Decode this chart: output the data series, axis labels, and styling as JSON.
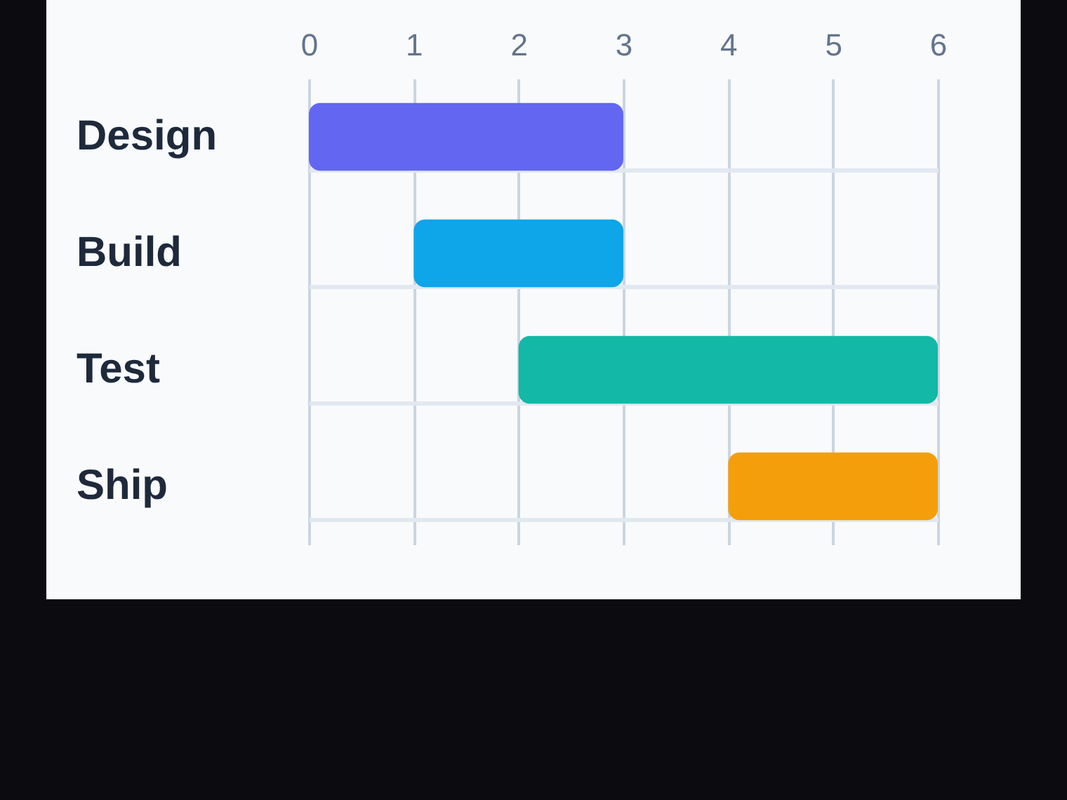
{
  "chart_data": {
    "type": "bar",
    "orientation": "horizontal",
    "categories": [
      "Design",
      "Build",
      "Test",
      "Ship"
    ],
    "base": [
      0,
      1,
      2,
      4
    ],
    "values": [
      3,
      2,
      4,
      2
    ],
    "colors": [
      "#6366f1",
      "#0ea5e9",
      "#14b8a6",
      "#f59e0b"
    ],
    "xlim": [
      0,
      6
    ],
    "xticks": [
      0,
      1,
      2,
      3,
      4,
      5,
      6
    ],
    "grid": true
  }
}
